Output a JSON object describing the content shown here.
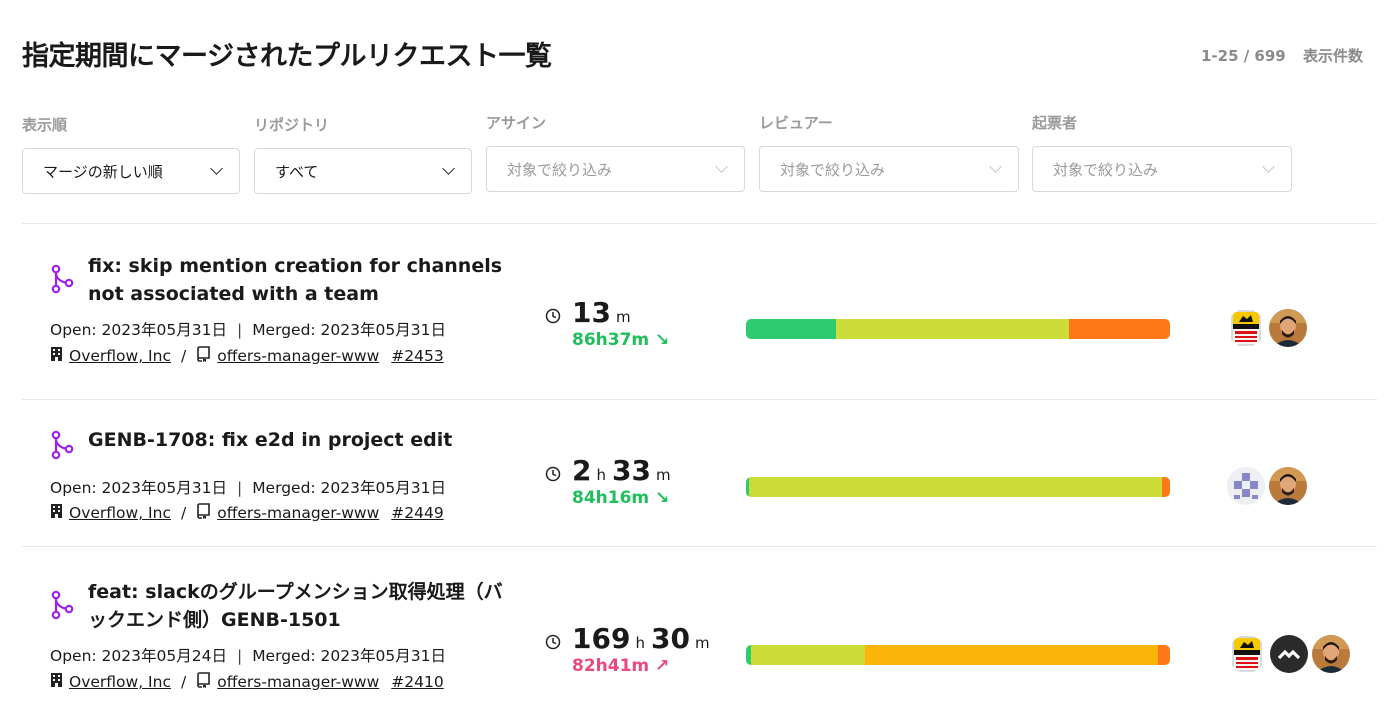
{
  "header": {
    "title": "指定期間にマージされたプルリクエスト一覧",
    "range": "1-25 / 699",
    "count_label": "表示件数"
  },
  "filters": [
    {
      "label": "表示順",
      "value": "マージの新しい順",
      "placeholder": false
    },
    {
      "label": "リポジトリ",
      "value": "すべて",
      "placeholder": false
    },
    {
      "label": "アサイン",
      "value": "対象で絞り込み",
      "placeholder": true
    },
    {
      "label": "レビュアー",
      "value": "対象で絞り込み",
      "placeholder": true
    },
    {
      "label": "起票者",
      "value": "対象で絞り込み",
      "placeholder": true
    }
  ],
  "colors": {
    "green": "#2ecc71",
    "yellowgreen": "#cddc39",
    "orange": "#ff7817",
    "amber": "#fbb40a",
    "merge": "#a020f0"
  },
  "pull_requests": [
    {
      "title": "fix: skip mention creation for channels not associated with a team",
      "open": "Open: 2023年05月31日",
      "merged": "Merged: 2023年05月31日",
      "org": "Overflow, Inc",
      "repo": "offers-manager-www",
      "number": "#2453",
      "duration": [
        {
          "value": "13",
          "unit": "m"
        }
      ],
      "delta": "86h37m ↘",
      "delta_status": "good",
      "segments": [
        {
          "color": "#2ecc71",
          "pct": 21.3
        },
        {
          "color": "#cddc39",
          "pct": 54.8
        },
        {
          "color": "#ff7817",
          "pct": 23.9
        }
      ],
      "avatars": [
        "caution-sign",
        "person"
      ]
    },
    {
      "title": "GENB-1708: fix e2d in project edit",
      "open": "Open: 2023年05月31日",
      "merged": "Merged: 2023年05月31日",
      "org": "Overflow, Inc",
      "repo": "offers-manager-www",
      "number": "#2449",
      "duration": [
        {
          "value": "2",
          "unit": "h"
        },
        {
          "value": "33",
          "unit": "m"
        }
      ],
      "delta": "84h16m ↘",
      "delta_status": "good",
      "segments": [
        {
          "color": "#2ecc71",
          "pct": 0.6
        },
        {
          "color": "#cddc39",
          "pct": 97.5
        },
        {
          "color": "#ff7817",
          "pct": 1.9
        }
      ],
      "avatars": [
        "identicon",
        "person"
      ]
    },
    {
      "title": "feat: slackのグループメンション取得処理（バックエンド側）GENB-1501",
      "open": "Open: 2023年05月24日",
      "merged": "Merged: 2023年05月31日",
      "org": "Overflow, Inc",
      "repo": "offers-manager-www",
      "number": "#2410",
      "duration": [
        {
          "value": "169",
          "unit": "h"
        },
        {
          "value": "30",
          "unit": "m"
        }
      ],
      "delta": "82h41m ↗",
      "delta_status": "bad",
      "segments": [
        {
          "color": "#2ecc71",
          "pct": 1.2
        },
        {
          "color": "#cddc39",
          "pct": 26.9
        },
        {
          "color": "#fbb40a",
          "pct": 69.1
        },
        {
          "color": "#ff7817",
          "pct": 2.8
        }
      ],
      "avatars": [
        "caution-sign",
        "dark-chevrons",
        "person"
      ]
    }
  ]
}
